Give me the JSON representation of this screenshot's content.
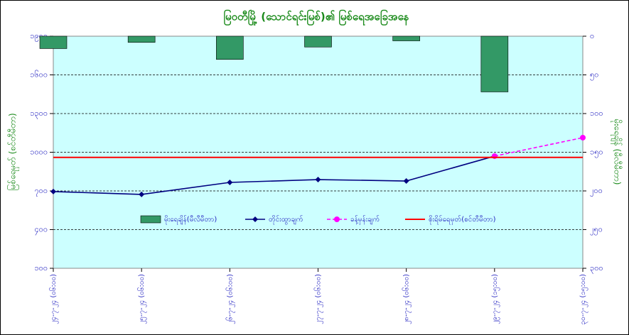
{
  "chart_data": {
    "type": "bar_line",
    "title": "မြဝတီမြို့ (သောင်ရင်းမြစ်)၏ မြစ်ရေအခြေအနေ",
    "y_label": "မြစ်ရေမှတ် (စင်တီမီတာ)",
    "y2_label": "မိုးရေချိန် (မီလီမီတာ)",
    "categories": [
      "၂၄-၇-၂၄ (၀၆:၀၀)",
      "၂၅-၇-၂၄ (၀၆:၀၀)",
      "၂၆-၇-၂၄ (၀၆:၀၀)",
      "၂၇-၇-၂၄ (၀၆:၀၀)",
      "၂၈-၇-၂၄ (၀၆:၀၀)",
      "၂၉-၇-၂၄ (၁၅:၀၀)",
      "၃၀-၇-၂၄ (၁၅:၀၀)"
    ],
    "ylim": [
      100,
      1900
    ],
    "yticks": [
      {
        "value": 100,
        "label": "၁၀၀"
      },
      {
        "value": 400,
        "label": "၄၀၀"
      },
      {
        "value": 700,
        "label": "၇၀၀"
      },
      {
        "value": 1000,
        "label": "၁၀၀၀"
      },
      {
        "value": 1300,
        "label": "၁၃၀၀"
      },
      {
        "value": 1600,
        "label": "၁၆၀၀"
      },
      {
        "value": 1900,
        "label": "၁၉၀၀"
      }
    ],
    "y2lim": [
      0,
      300
    ],
    "y2_inverted": true,
    "y2ticks": [
      {
        "value": 0,
        "label": "၀"
      },
      {
        "value": 50,
        "label": "၅၀"
      },
      {
        "value": 100,
        "label": "၁၀၀"
      },
      {
        "value": 150,
        "label": "၁၅၀"
      },
      {
        "value": 200,
        "label": "၂၀၀"
      },
      {
        "value": 250,
        "label": "၂၅၀"
      },
      {
        "value": 300,
        "label": "၃၀၀"
      }
    ],
    "grid": true,
    "series": [
      {
        "name": "မိုးရေချိန်(မီလီမီတာ)",
        "kind": "bar",
        "axis": "y2",
        "color": "#339966",
        "values": [
          16,
          8,
          30,
          14,
          6,
          72,
          null
        ]
      },
      {
        "name": "တိုင်းထွာချက်",
        "kind": "line",
        "color": "#000080",
        "values": [
          695,
          673,
          766,
          788,
          777,
          970,
          null
        ]
      },
      {
        "name": "ခန့်မှန်းချက်",
        "kind": "dashed",
        "color": "#ff00ff",
        "values": [
          null,
          null,
          null,
          null,
          null,
          970,
          1113
        ]
      }
    ],
    "danger_level": {
      "name": "စိုးရိမ်ရေမှတ်(စင်တီမီတာ)",
      "value": 960,
      "color": "#ff0000"
    }
  }
}
